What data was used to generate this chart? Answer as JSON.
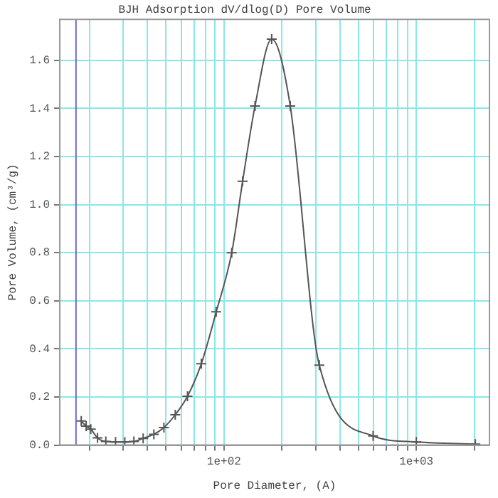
{
  "chart_data": {
    "type": "line",
    "title": "BJH Adsorption dV/dlog(D) Pore Volume",
    "xlabel": "Pore Diameter, (A)",
    "ylabel": "Pore Volume, (cm³/g)",
    "x": [
      18.1,
      19.2,
      20.3,
      22.0,
      24.3,
      27.3,
      30.5,
      34.0,
      38.0,
      43.2,
      48.7,
      55.8,
      64.6,
      76.2,
      91.1,
      109.7,
      125,
      145,
      177,
      221,
      313,
      596,
      1000,
      2027
    ],
    "series": [
      {
        "color": "#555555",
        "values": [
          0.1,
          0.079,
          0.066,
          0.03,
          0.015,
          0.013,
          0.013,
          0.015,
          0.028,
          0.045,
          0.073,
          0.126,
          0.203,
          0.338,
          0.554,
          0.8,
          1.097,
          1.41,
          1.688,
          1.41,
          0.332,
          0.038,
          0.013,
          0.004
        ]
      }
    ],
    "log": "x",
    "xlim": [
      14,
      2400
    ],
    "xticks": [
      {
        "value": 20,
        "label": null
      },
      {
        "value": 30,
        "label": null
      },
      {
        "value": 40,
        "label": null
      },
      {
        "value": 50,
        "label": null
      },
      {
        "value": 60,
        "label": null
      },
      {
        "value": 70,
        "label": null
      },
      {
        "value": 80,
        "label": null
      },
      {
        "value": 90,
        "label": null
      },
      {
        "value": 100,
        "label": "1e+02"
      },
      {
        "value": 200,
        "label": null
      },
      {
        "value": 300,
        "label": null
      },
      {
        "value": 400,
        "label": null
      },
      {
        "value": 500,
        "label": null
      },
      {
        "value": 600,
        "label": null
      },
      {
        "value": 700,
        "label": null
      },
      {
        "value": 800,
        "label": null
      },
      {
        "value": 900,
        "label": null
      },
      {
        "value": 1000,
        "label": "1e+03"
      },
      {
        "value": 2000,
        "label": null
      }
    ],
    "ylim": [
      0,
      1.77
    ],
    "yticks": [
      {
        "value": 0,
        "label": "0.0"
      },
      {
        "value": 0.2,
        "label": "0.2"
      },
      {
        "value": 0.4,
        "label": "0.4"
      },
      {
        "value": 0.6,
        "label": "0.6"
      },
      {
        "value": 0.8,
        "label": "0.8"
      },
      {
        "value": 1,
        "label": "1.0"
      },
      {
        "value": 1.2,
        "label": "1.2"
      },
      {
        "value": 1.4,
        "label": "1.4"
      },
      {
        "value": 1.6,
        "label": "1.6"
      }
    ],
    "ref_lines": [
      {
        "axis": "x",
        "value": 17,
        "color": "#6a6ac8"
      }
    ],
    "grid": true,
    "marker": "cross",
    "line_style": "solid",
    "legend": false
  }
}
